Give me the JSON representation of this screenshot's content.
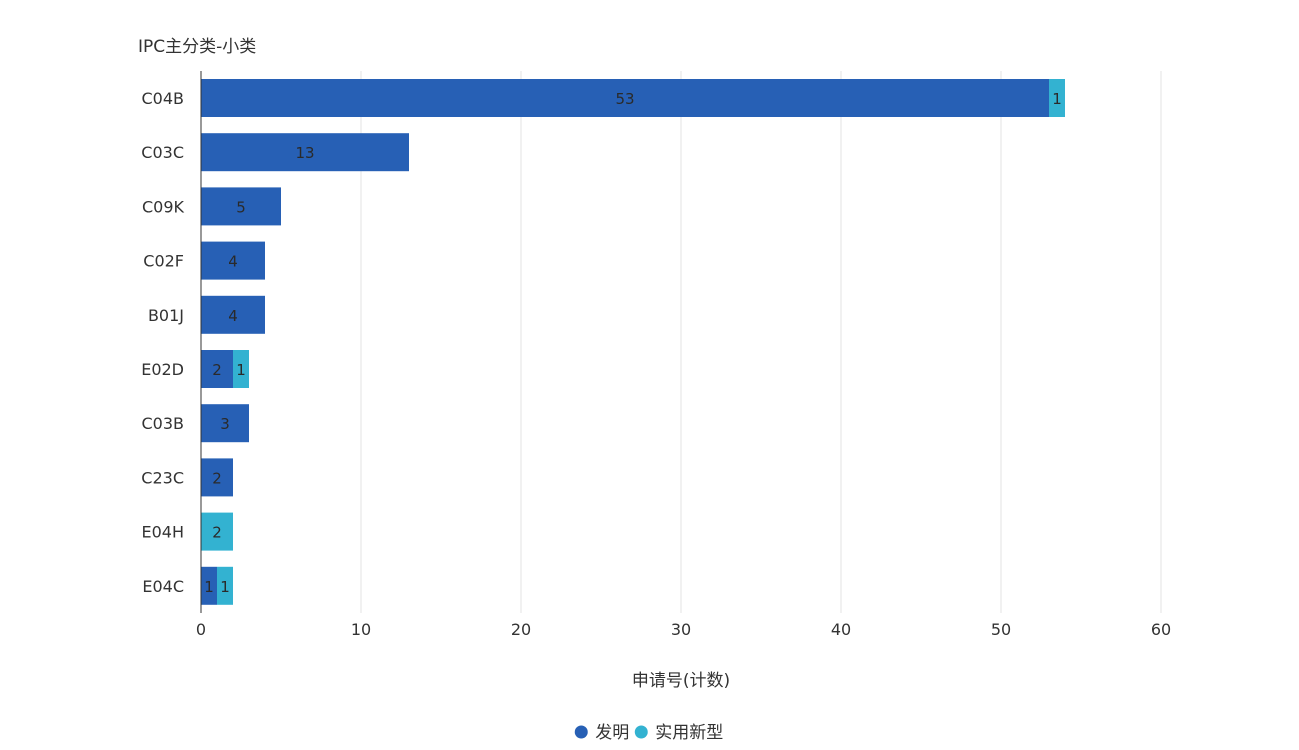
{
  "chart_data": {
    "type": "bar",
    "orientation": "horizontal",
    "stacked": true,
    "ylabel": "IPC主分类-小类",
    "xlabel": "申请号(计数)",
    "categories": [
      "C04B",
      "C03C",
      "C09K",
      "C02F",
      "B01J",
      "E02D",
      "C03B",
      "C23C",
      "E04H",
      "E04C"
    ],
    "series": [
      {
        "name": "发明",
        "color": "#2760B5",
        "values": [
          53,
          13,
          5,
          4,
          4,
          2,
          3,
          2,
          0,
          1
        ]
      },
      {
        "name": "实用新型",
        "color": "#33B2D1",
        "values": [
          1,
          0,
          0,
          0,
          0,
          1,
          0,
          0,
          2,
          1
        ]
      }
    ],
    "xlim": [
      0,
      60
    ],
    "xticks": [
      0,
      10,
      20,
      30,
      40,
      50,
      60
    ],
    "grid": true,
    "legend_position": "bottom-center"
  }
}
